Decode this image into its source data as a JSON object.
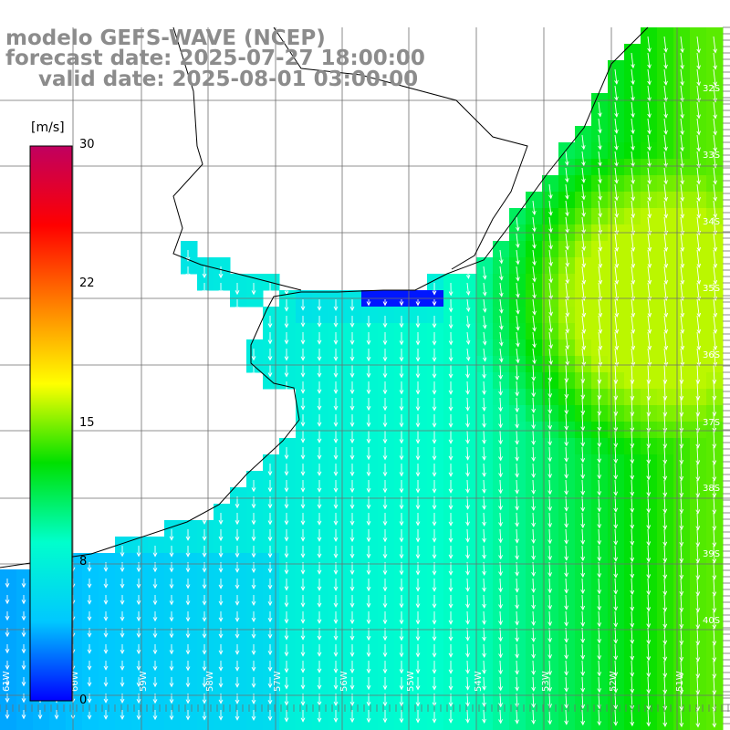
{
  "header": {
    "model_line": "modelo GEFS-WAVE (NCEP)",
    "forecast_line": "forecast date: 2025-07-27 18:00:00",
    "valid_line": "valid date: 2025-08-01 03:00:00"
  },
  "colorbar": {
    "unit": "[m/s]",
    "min": 0,
    "max": 30,
    "ticks": [
      "30",
      "22",
      "15",
      "8",
      "0"
    ],
    "tick_values": [
      30,
      22,
      15,
      8,
      0
    ],
    "colors": [
      "#0000ff",
      "#00c8ff",
      "#00ffcc",
      "#00e000",
      "#ffff00",
      "#ff8000",
      "#ff0000",
      "#c00060"
    ]
  },
  "map": {
    "lat_labels": [
      "32S",
      "33S",
      "34S",
      "35S",
      "36S",
      "37S",
      "38S",
      "39S",
      "40S"
    ],
    "lon_labels": [
      "61W",
      "60W",
      "59W",
      "58W",
      "57W",
      "56W",
      "55W",
      "54W",
      "53W",
      "52W",
      "51W"
    ],
    "arrow_color": "#ffffff",
    "coastline_color": "#000000",
    "grid_color": "#6e6e6e"
  }
}
